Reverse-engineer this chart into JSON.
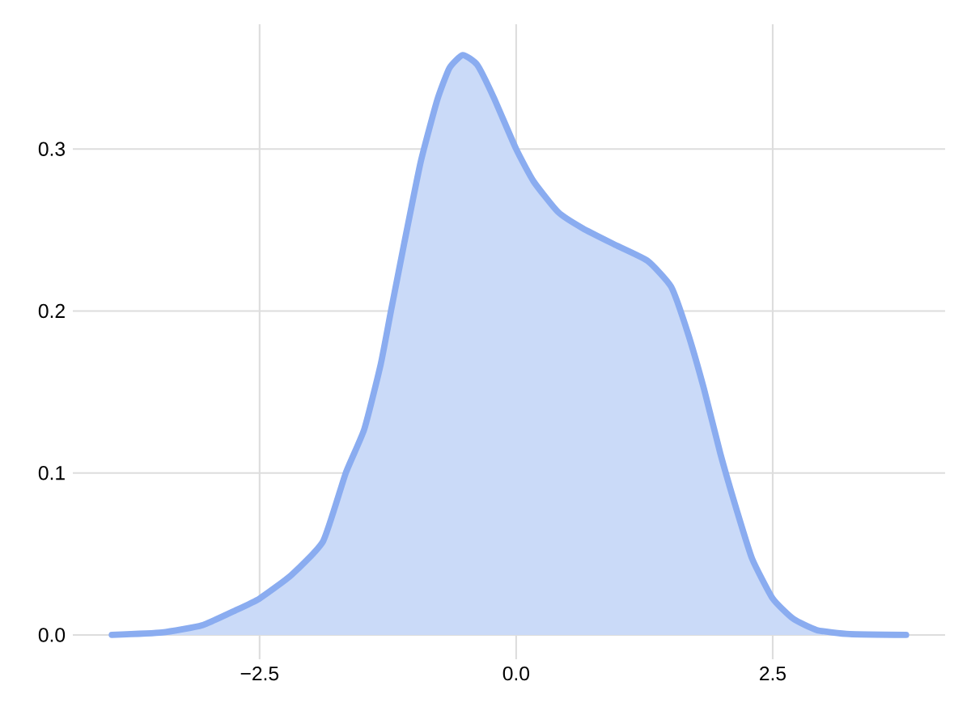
{
  "chart_data": {
    "type": "area",
    "grid": true,
    "xlim": [
      -4.32,
      4.18
    ],
    "ylim": [
      -0.015,
      0.377
    ],
    "xticks": [
      {
        "value": -2.5,
        "label": "−2.5"
      },
      {
        "value": 0,
        "label": "0.0"
      },
      {
        "value": 2.5,
        "label": "2.5"
      }
    ],
    "yticks": [
      {
        "value": 0,
        "label": "0.0"
      },
      {
        "value": 0.1,
        "label": "0.1"
      },
      {
        "value": 0.2,
        "label": "0.2"
      },
      {
        "value": 0.3,
        "label": "0.3"
      }
    ],
    "series": [
      {
        "color": "#8aacf0",
        "x": [
          -3.94,
          -3.45,
          -3.06,
          -2.74,
          -2.5,
          -2.19,
          -1.88,
          -1.66,
          -1.48,
          -1.32,
          -1.22,
          -1.09,
          -0.93,
          -0.77,
          -0.65,
          -0.52,
          -0.38,
          -0.22,
          0,
          0.17,
          0.41,
          0.65,
          0.96,
          1.28,
          1.51,
          1.67,
          1.83,
          1.99,
          2.15,
          2.3,
          2.5,
          2.7,
          2.93,
          3.25,
          3.8
        ],
        "values": [
          0,
          0.0015,
          0.006,
          0.015,
          0.0225,
          0.037,
          0.058,
          0.1,
          0.127,
          0.167,
          0.2,
          0.242,
          0.292,
          0.33,
          0.35,
          0.358,
          0.352,
          0.332,
          0.3,
          0.28,
          0.261,
          0.251,
          0.241,
          0.231,
          0.215,
          0.187,
          0.152,
          0.112,
          0.077,
          0.047,
          0.0225,
          0.01,
          0.003,
          0.0005,
          0
        ]
      }
    ]
  }
}
